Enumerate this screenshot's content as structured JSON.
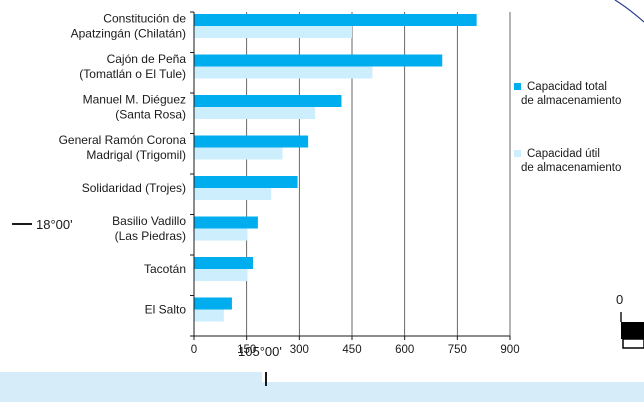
{
  "map": {
    "lat_label": "18°00'",
    "lon_label": "105°00'",
    "scale_zero": "0"
  },
  "chart_data": {
    "type": "bar",
    "orientation": "horizontal",
    "categories": [
      [
        "Constitución de",
        "Apatzingán (Chilatán)"
      ],
      [
        "Cajón de Peña",
        "(Tomatlán o El Tule)"
      ],
      [
        "Manuel M. Diéguez",
        "(Santa Rosa)"
      ],
      [
        "General Ramón Corona",
        "Madrigal (Trigomil)"
      ],
      [
        "Solidaridad (Trojes)"
      ],
      [
        "Basilio Vadillo",
        "(Las Piedras)"
      ],
      [
        "Tacotán"
      ],
      [
        "El Salto"
      ]
    ],
    "series": [
      {
        "name": [
          "Capacidad total",
          "de almacenamiento"
        ],
        "color": "#00aeef",
        "values": [
          805,
          707,
          420,
          325,
          295,
          182,
          168,
          108
        ]
      },
      {
        "name": [
          "Capacidad útil",
          "de almacenamiento"
        ],
        "color": "#cdeefc",
        "values": [
          450,
          508,
          345,
          252,
          220,
          152,
          152,
          85
        ]
      }
    ],
    "xticks": [
      0,
      150,
      300,
      450,
      600,
      750,
      900
    ],
    "xlim": [
      0,
      900
    ],
    "grid": true,
    "legend": "right"
  }
}
